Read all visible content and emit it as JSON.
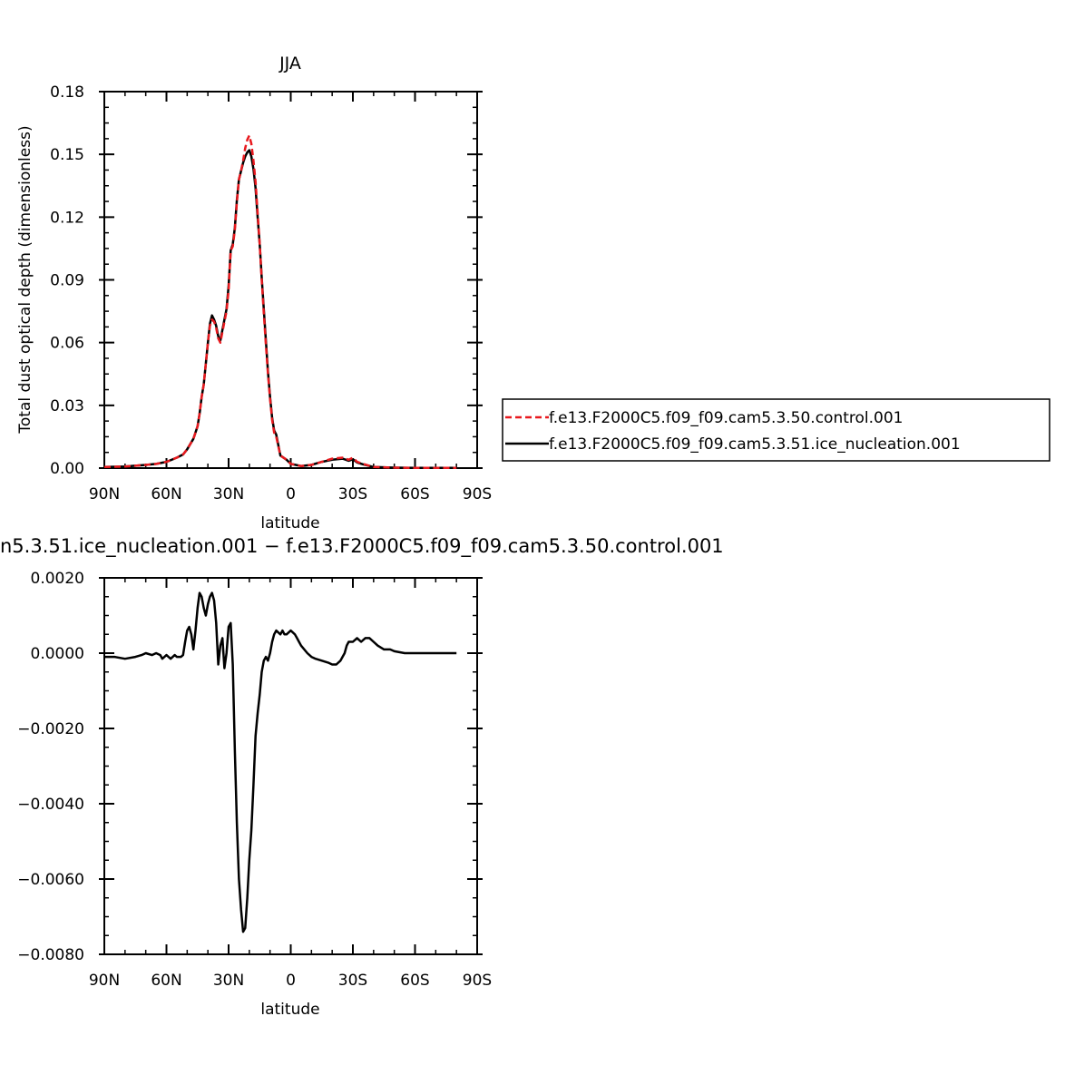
{
  "colors": {
    "control": "#e8191e",
    "ice": "#000000",
    "axis": "#000000",
    "background": "#ffffff"
  },
  "chart_data": [
    {
      "type": "line",
      "title": "JJA",
      "xlabel": "latitude",
      "ylabel": "Total dust optical depth (dimensionless)",
      "xlim": [
        90,
        -90
      ],
      "ylim": [
        0,
        0.18
      ],
      "xticks": [
        90,
        60,
        30,
        0,
        -30,
        -60,
        -90
      ],
      "xtick_labels": [
        "90N",
        "60N",
        "30N",
        "0",
        "30S",
        "60S",
        "90S"
      ],
      "yticks": [
        0,
        0.03,
        0.06,
        0.09,
        0.12,
        0.15,
        0.18
      ],
      "ytick_labels": [
        "0.00",
        "0.03",
        "0.06",
        "0.09",
        "0.12",
        "0.15",
        "0.18"
      ],
      "legend_position": "right",
      "series": [
        {
          "name": "f.e13.F2000C5.f09_f09.cam5.3.50.control.001",
          "style": "dashed",
          "color": "#e8191e",
          "x": [
            90,
            80,
            70,
            65,
            60,
            55,
            52,
            50,
            47,
            45,
            44,
            43,
            42,
            41,
            40,
            39,
            38,
            37,
            36,
            35,
            34,
            32,
            31,
            30,
            29,
            28,
            27,
            26,
            25,
            24,
            23,
            22,
            21,
            20,
            19,
            18,
            17,
            16,
            15,
            14,
            13,
            12,
            11,
            10,
            9,
            8,
            7,
            5,
            2,
            0,
            -5,
            -10,
            -15,
            -20,
            -25,
            -28,
            -30,
            -32,
            -35,
            -40,
            -50,
            -60,
            -70,
            -80
          ],
          "y": [
            0.0005,
            0.0008,
            0.0015,
            0.002,
            0.003,
            0.005,
            0.0065,
            0.009,
            0.014,
            0.02,
            0.026,
            0.034,
            0.04,
            0.05,
            0.06,
            0.068,
            0.071,
            0.07,
            0.067,
            0.062,
            0.06,
            0.07,
            0.075,
            0.085,
            0.104,
            0.106,
            0.114,
            0.127,
            0.138,
            0.142,
            0.147,
            0.153,
            0.157,
            0.159,
            0.155,
            0.147,
            0.137,
            0.122,
            0.107,
            0.09,
            0.074,
            0.059,
            0.045,
            0.033,
            0.023,
            0.017,
            0.015,
            0.006,
            0.004,
            0.002,
            0.001,
            0.0015,
            0.003,
            0.0045,
            0.005,
            0.004,
            0.005,
            0.003,
            0.002,
            0.0005,
            0.0002,
            0.0001,
            0.0001,
            0.0001
          ]
        },
        {
          "name": "f.e13.F2000C5.f09_f09.cam5.3.51.ice_nucleation.001",
          "style": "solid",
          "color": "#000000",
          "x": [
            90,
            80,
            70,
            65,
            60,
            55,
            52,
            50,
            47,
            45,
            44,
            43,
            42,
            41,
            40,
            39,
            38,
            37,
            36,
            35,
            34,
            32,
            31,
            30,
            29,
            28,
            27,
            26,
            25,
            24,
            23,
            22,
            21,
            20,
            19,
            18,
            17,
            16,
            15,
            14,
            13,
            12,
            11,
            10,
            9,
            8,
            7,
            5,
            2,
            0,
            -5,
            -10,
            -15,
            -20,
            -25,
            -28,
            -30,
            -32,
            -35,
            -40,
            -50,
            -60,
            -70,
            -80
          ],
          "y": [
            0.0005,
            0.0008,
            0.0015,
            0.002,
            0.003,
            0.005,
            0.0065,
            0.009,
            0.014,
            0.02,
            0.026,
            0.034,
            0.04,
            0.05,
            0.06,
            0.069,
            0.073,
            0.071,
            0.068,
            0.063,
            0.061,
            0.071,
            0.076,
            0.087,
            0.104,
            0.107,
            0.115,
            0.128,
            0.138,
            0.142,
            0.146,
            0.149,
            0.151,
            0.152,
            0.149,
            0.143,
            0.134,
            0.12,
            0.107,
            0.091,
            0.076,
            0.061,
            0.046,
            0.034,
            0.024,
            0.018,
            0.016,
            0.006,
            0.004,
            0.002,
            0.001,
            0.0015,
            0.003,
            0.004,
            0.0045,
            0.0035,
            0.0042,
            0.0027,
            0.0018,
            0.0005,
            0.0002,
            0.0001,
            0.0001,
            0.0001
          ]
        }
      ]
    },
    {
      "type": "line",
      "title": "n5.3.51.ice_nucleation.001  −  f.e13.F2000C5.f09_f09.cam5.3.50.control.001",
      "xlabel": "latitude",
      "ylabel": "",
      "xlim": [
        90,
        -90
      ],
      "ylim": [
        -0.008,
        0.002
      ],
      "xticks": [
        90,
        60,
        30,
        0,
        -30,
        -60,
        -90
      ],
      "xtick_labels": [
        "90N",
        "60N",
        "30N",
        "0",
        "30S",
        "60S",
        "90S"
      ],
      "yticks": [
        0.002,
        0,
        -0.002,
        -0.004,
        -0.006,
        -0.008
      ],
      "ytick_labels": [
        "0.0020",
        "0.0000",
        "−0.0020",
        "−0.0040",
        "−0.0060",
        "−0.0080"
      ],
      "series": [
        {
          "style": "solid",
          "color": "#000000",
          "x": [
            90,
            85,
            80,
            75,
            72,
            70,
            67,
            65,
            63,
            62,
            60,
            58,
            56,
            55,
            54,
            53,
            52,
            51,
            50,
            49,
            48,
            47,
            46,
            45,
            44,
            43,
            42,
            41,
            40,
            39,
            38,
            37,
            36,
            35,
            34,
            33,
            32,
            31,
            30,
            29,
            28,
            27,
            26,
            25,
            24,
            23,
            22,
            21,
            20,
            19,
            18,
            17,
            16,
            15,
            14,
            13,
            12,
            11,
            10,
            9,
            8,
            7,
            6,
            5,
            4,
            3,
            2,
            1,
            0,
            -1,
            -2,
            -3,
            -4,
            -5,
            -8,
            -10,
            -12,
            -15,
            -18,
            -20,
            -22,
            -24,
            -25,
            -26,
            -27,
            -28,
            -30,
            -32,
            -34,
            -36,
            -38,
            -40,
            -42,
            -45,
            -48,
            -50,
            -55,
            -60,
            -65,
            -70,
            -75,
            -80
          ],
          "y": [
            -0.0001,
            -0.0001,
            -0.00015,
            -0.0001,
            -5e-05,
            0,
            -5e-05,
            0,
            -5e-05,
            -0.00015,
            -5e-05,
            -0.00015,
            -5e-05,
            -0.0001,
            -0.0001,
            -0.0001,
            -5e-05,
            0.0003,
            0.0006,
            0.0007,
            0.0005,
            0.0001,
            0.0006,
            0.0012,
            0.0016,
            0.0015,
            0.0012,
            0.001,
            0.0013,
            0.0015,
            0.0016,
            0.0014,
            0.0008,
            -0.0003,
            0.0002,
            0.0004,
            -0.0004,
            0,
            0.0007,
            0.0008,
            -0.0003,
            -0.0026,
            -0.0045,
            -0.006,
            -0.0068,
            -0.0074,
            -0.0073,
            -0.0065,
            -0.0055,
            -0.0047,
            -0.0035,
            -0.0022,
            -0.0016,
            -0.0011,
            -0.0005,
            -0.0002,
            -0.0001,
            -0.0002,
            0,
            0.0003,
            0.0005,
            0.0006,
            0.00055,
            0.0005,
            0.0006,
            0.0005,
            0.0005,
            0.00055,
            0.0006,
            0.00055,
            0.0005,
            0.0004,
            0.0003,
            0.0002,
            0,
            -0.0001,
            -0.00015,
            -0.0002,
            -0.00025,
            -0.0003,
            -0.0003,
            -0.0002,
            -0.0001,
            0,
            0.0002,
            0.0003,
            0.0003,
            0.0004,
            0.0003,
            0.0004,
            0.0004,
            0.0003,
            0.0002,
            0.0001,
            0.0001,
            5e-05,
            0,
            0,
            0,
            0,
            0,
            0
          ]
        }
      ]
    }
  ]
}
